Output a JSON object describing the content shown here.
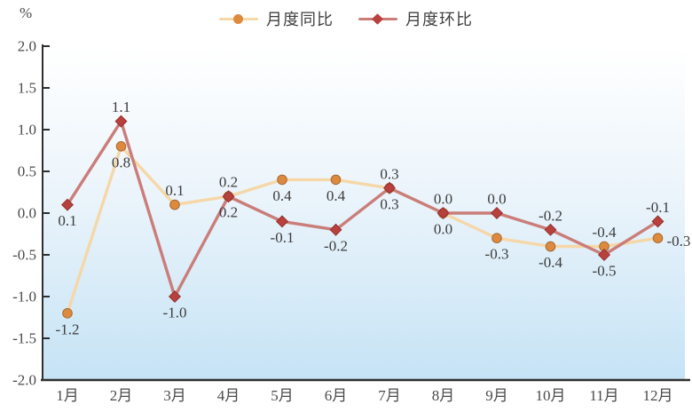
{
  "legend": {
    "items": [
      {
        "label": "月度同比"
      },
      {
        "label": "月度环比"
      }
    ]
  },
  "axes": {
    "y_unit": "%"
  },
  "chart_data": {
    "type": "line",
    "title": "",
    "xlabel": "",
    "ylabel": "%",
    "categories": [
      "1月",
      "2月",
      "3月",
      "4月",
      "5月",
      "6月",
      "7月",
      "8月",
      "9月",
      "10月",
      "11月",
      "12月"
    ],
    "series": [
      {
        "name": "月度同比",
        "marker": "circle",
        "line_color": "#f5d7a8",
        "marker_color": "#dd8a3f",
        "marker_edge": "#a56a30",
        "values": [
          -1.2,
          0.8,
          0.1,
          0.2,
          0.4,
          0.4,
          0.3,
          0.0,
          -0.3,
          -0.4,
          -0.4,
          -0.3
        ],
        "label_positions": [
          "below",
          "below",
          "above",
          "above",
          "below",
          "below",
          "above",
          "below",
          "below",
          "below",
          "above",
          "right"
        ]
      },
      {
        "name": "月度环比",
        "marker": "diamond",
        "line_color": "#ca7d79",
        "marker_color": "#b8413e",
        "marker_edge": "#93302d",
        "values": [
          0.1,
          1.1,
          -1.0,
          0.2,
          -0.1,
          -0.2,
          0.3,
          0.0,
          0.0,
          -0.2,
          -0.5,
          -0.1
        ],
        "label_positions": [
          "below",
          "above",
          "below",
          "below",
          "below",
          "below",
          "below",
          "above",
          "above",
          "above",
          "below",
          "above"
        ]
      }
    ],
    "ylim": [
      -2.0,
      2.0
    ],
    "ytick_step": 0.5,
    "label_decimals": 1,
    "grid": false,
    "legend_position": "top",
    "plot_bg_gradient": [
      "#ffffff",
      "#ebf4fb",
      "#c5e3f5"
    ],
    "axis_color": "#2f2f2f",
    "label_text_color": "#3c3c3c",
    "tick_text_color": "#4a4a4a"
  }
}
